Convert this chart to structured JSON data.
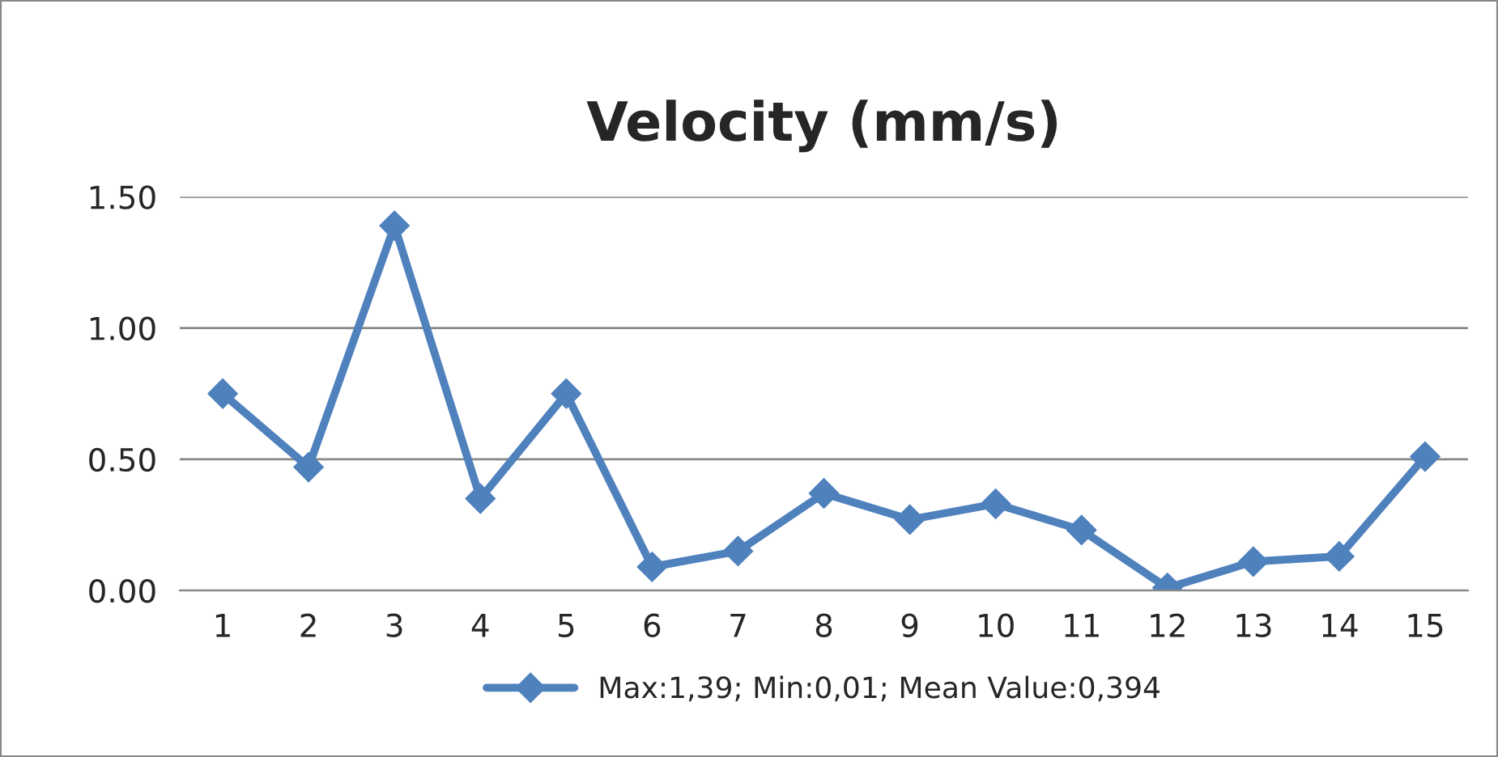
{
  "chart_data": {
    "type": "line",
    "title": "Velocity (mm/s)",
    "categories": [
      "1",
      "2",
      "3",
      "4",
      "5",
      "6",
      "7",
      "8",
      "9",
      "10",
      "11",
      "12",
      "13",
      "14",
      "15"
    ],
    "series": [
      {
        "name": "Max:1,39; Min:0,01; Mean Value:0,394",
        "color": "#4f81bd",
        "values": [
          0.75,
          0.47,
          1.39,
          0.35,
          0.75,
          0.09,
          0.15,
          0.37,
          0.27,
          0.33,
          0.23,
          0.01,
          0.11,
          0.13,
          0.51
        ]
      }
    ],
    "ylim": [
      0,
      1.5
    ],
    "yticks": [
      {
        "value": 0,
        "label": "0.00"
      },
      {
        "value": 0.5,
        "label": "0.50"
      },
      {
        "value": 1,
        "label": "1.00"
      },
      {
        "value": 1.5,
        "label": "1.50"
      }
    ],
    "grid": "y",
    "legend": "bottom",
    "marker": "diamond",
    "line_style": "solid"
  }
}
